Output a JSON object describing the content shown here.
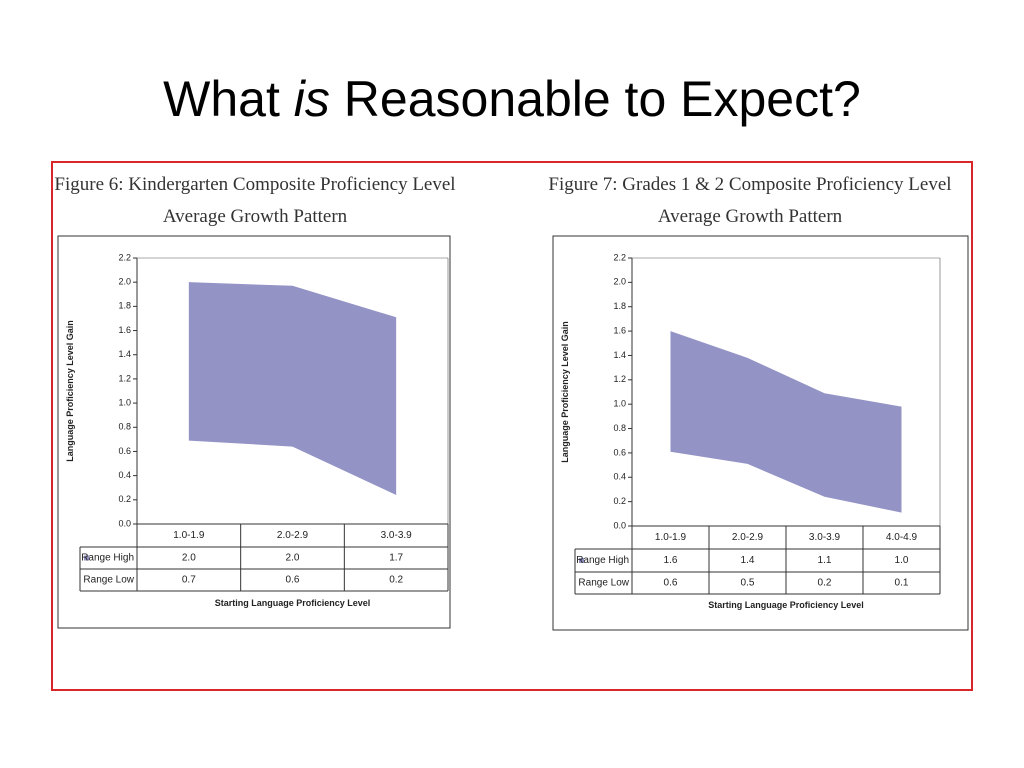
{
  "title": {
    "before": "What",
    "emphasis": "is",
    "after": "Reasonable to Expect?"
  },
  "chart_data": [
    {
      "type": "range-area",
      "title": "Figure 6: Kindergarten Composite Proficiency Level",
      "subtitle": "Average Growth Pattern",
      "ylabel": "Language Proficiency Level Gain",
      "xlabel": "Starting Language Proficiency Level",
      "categories": [
        "1.0-1.9",
        "2.0-2.9",
        "3.0-3.9"
      ],
      "series": [
        {
          "name": "Range High",
          "color": "#9393c6",
          "values": [
            2.0,
            1.97,
            1.71
          ],
          "value_labels": [
            "2.0",
            "2.0",
            "1.7"
          ]
        },
        {
          "name": "Range Low",
          "color": "#9393c6",
          "values": [
            0.69,
            0.64,
            0.24
          ],
          "value_labels": [
            "0.7",
            "0.6",
            "0.2"
          ]
        }
      ],
      "ylim": [
        0,
        2.2
      ],
      "yticks": [
        {
          "value": 0,
          "label": "0.0"
        },
        {
          "value": 0.2,
          "label": "0.2"
        },
        {
          "value": 0.4,
          "label": "0.4"
        },
        {
          "value": 0.6,
          "label": "0.6"
        },
        {
          "value": 0.8,
          "label": "0.8"
        },
        {
          "value": 1,
          "label": "1.0"
        },
        {
          "value": 1.2,
          "label": "1.2"
        },
        {
          "value": 1.4,
          "label": "1.4"
        },
        {
          "value": 1.6,
          "label": "1.6"
        },
        {
          "value": 1.8,
          "label": "1.8"
        },
        {
          "value": 2,
          "label": "2.0"
        },
        {
          "value": 2.2,
          "label": "2.2"
        }
      ]
    },
    {
      "type": "range-area",
      "title": "Figure 7: Grades 1 & 2 Composite Proficiency Level",
      "subtitle": "Average Growth Pattern",
      "ylabel": "Language Proficiency Level Gain",
      "xlabel": "Starting Language Proficiency Level",
      "categories": [
        "1.0-1.9",
        "2.0-2.9",
        "3.0-3.9",
        "4.0-4.9"
      ],
      "series": [
        {
          "name": "Range High",
          "color": "#9393c6",
          "values": [
            1.6,
            1.38,
            1.09,
            0.98
          ],
          "value_labels": [
            "1.6",
            "1.4",
            "1.1",
            "1.0"
          ]
        },
        {
          "name": "Range Low",
          "color": "#9393c6",
          "values": [
            0.61,
            0.51,
            0.24,
            0.11
          ],
          "value_labels": [
            "0.6",
            "0.5",
            "0.2",
            "0.1"
          ]
        }
      ],
      "ylim": [
        0,
        2.2
      ],
      "yticks": [
        {
          "value": 0,
          "label": "0.0"
        },
        {
          "value": 0.2,
          "label": "0.2"
        },
        {
          "value": 0.4,
          "label": "0.4"
        },
        {
          "value": 0.6,
          "label": "0.6"
        },
        {
          "value": 0.8,
          "label": "0.8"
        },
        {
          "value": 1,
          "label": "1.0"
        },
        {
          "value": 1.2,
          "label": "1.2"
        },
        {
          "value": 1.4,
          "label": "1.4"
        },
        {
          "value": 1.6,
          "label": "1.6"
        },
        {
          "value": 1.8,
          "label": "1.8"
        },
        {
          "value": 2,
          "label": "2.0"
        },
        {
          "value": 2.2,
          "label": "2.2"
        }
      ]
    }
  ]
}
